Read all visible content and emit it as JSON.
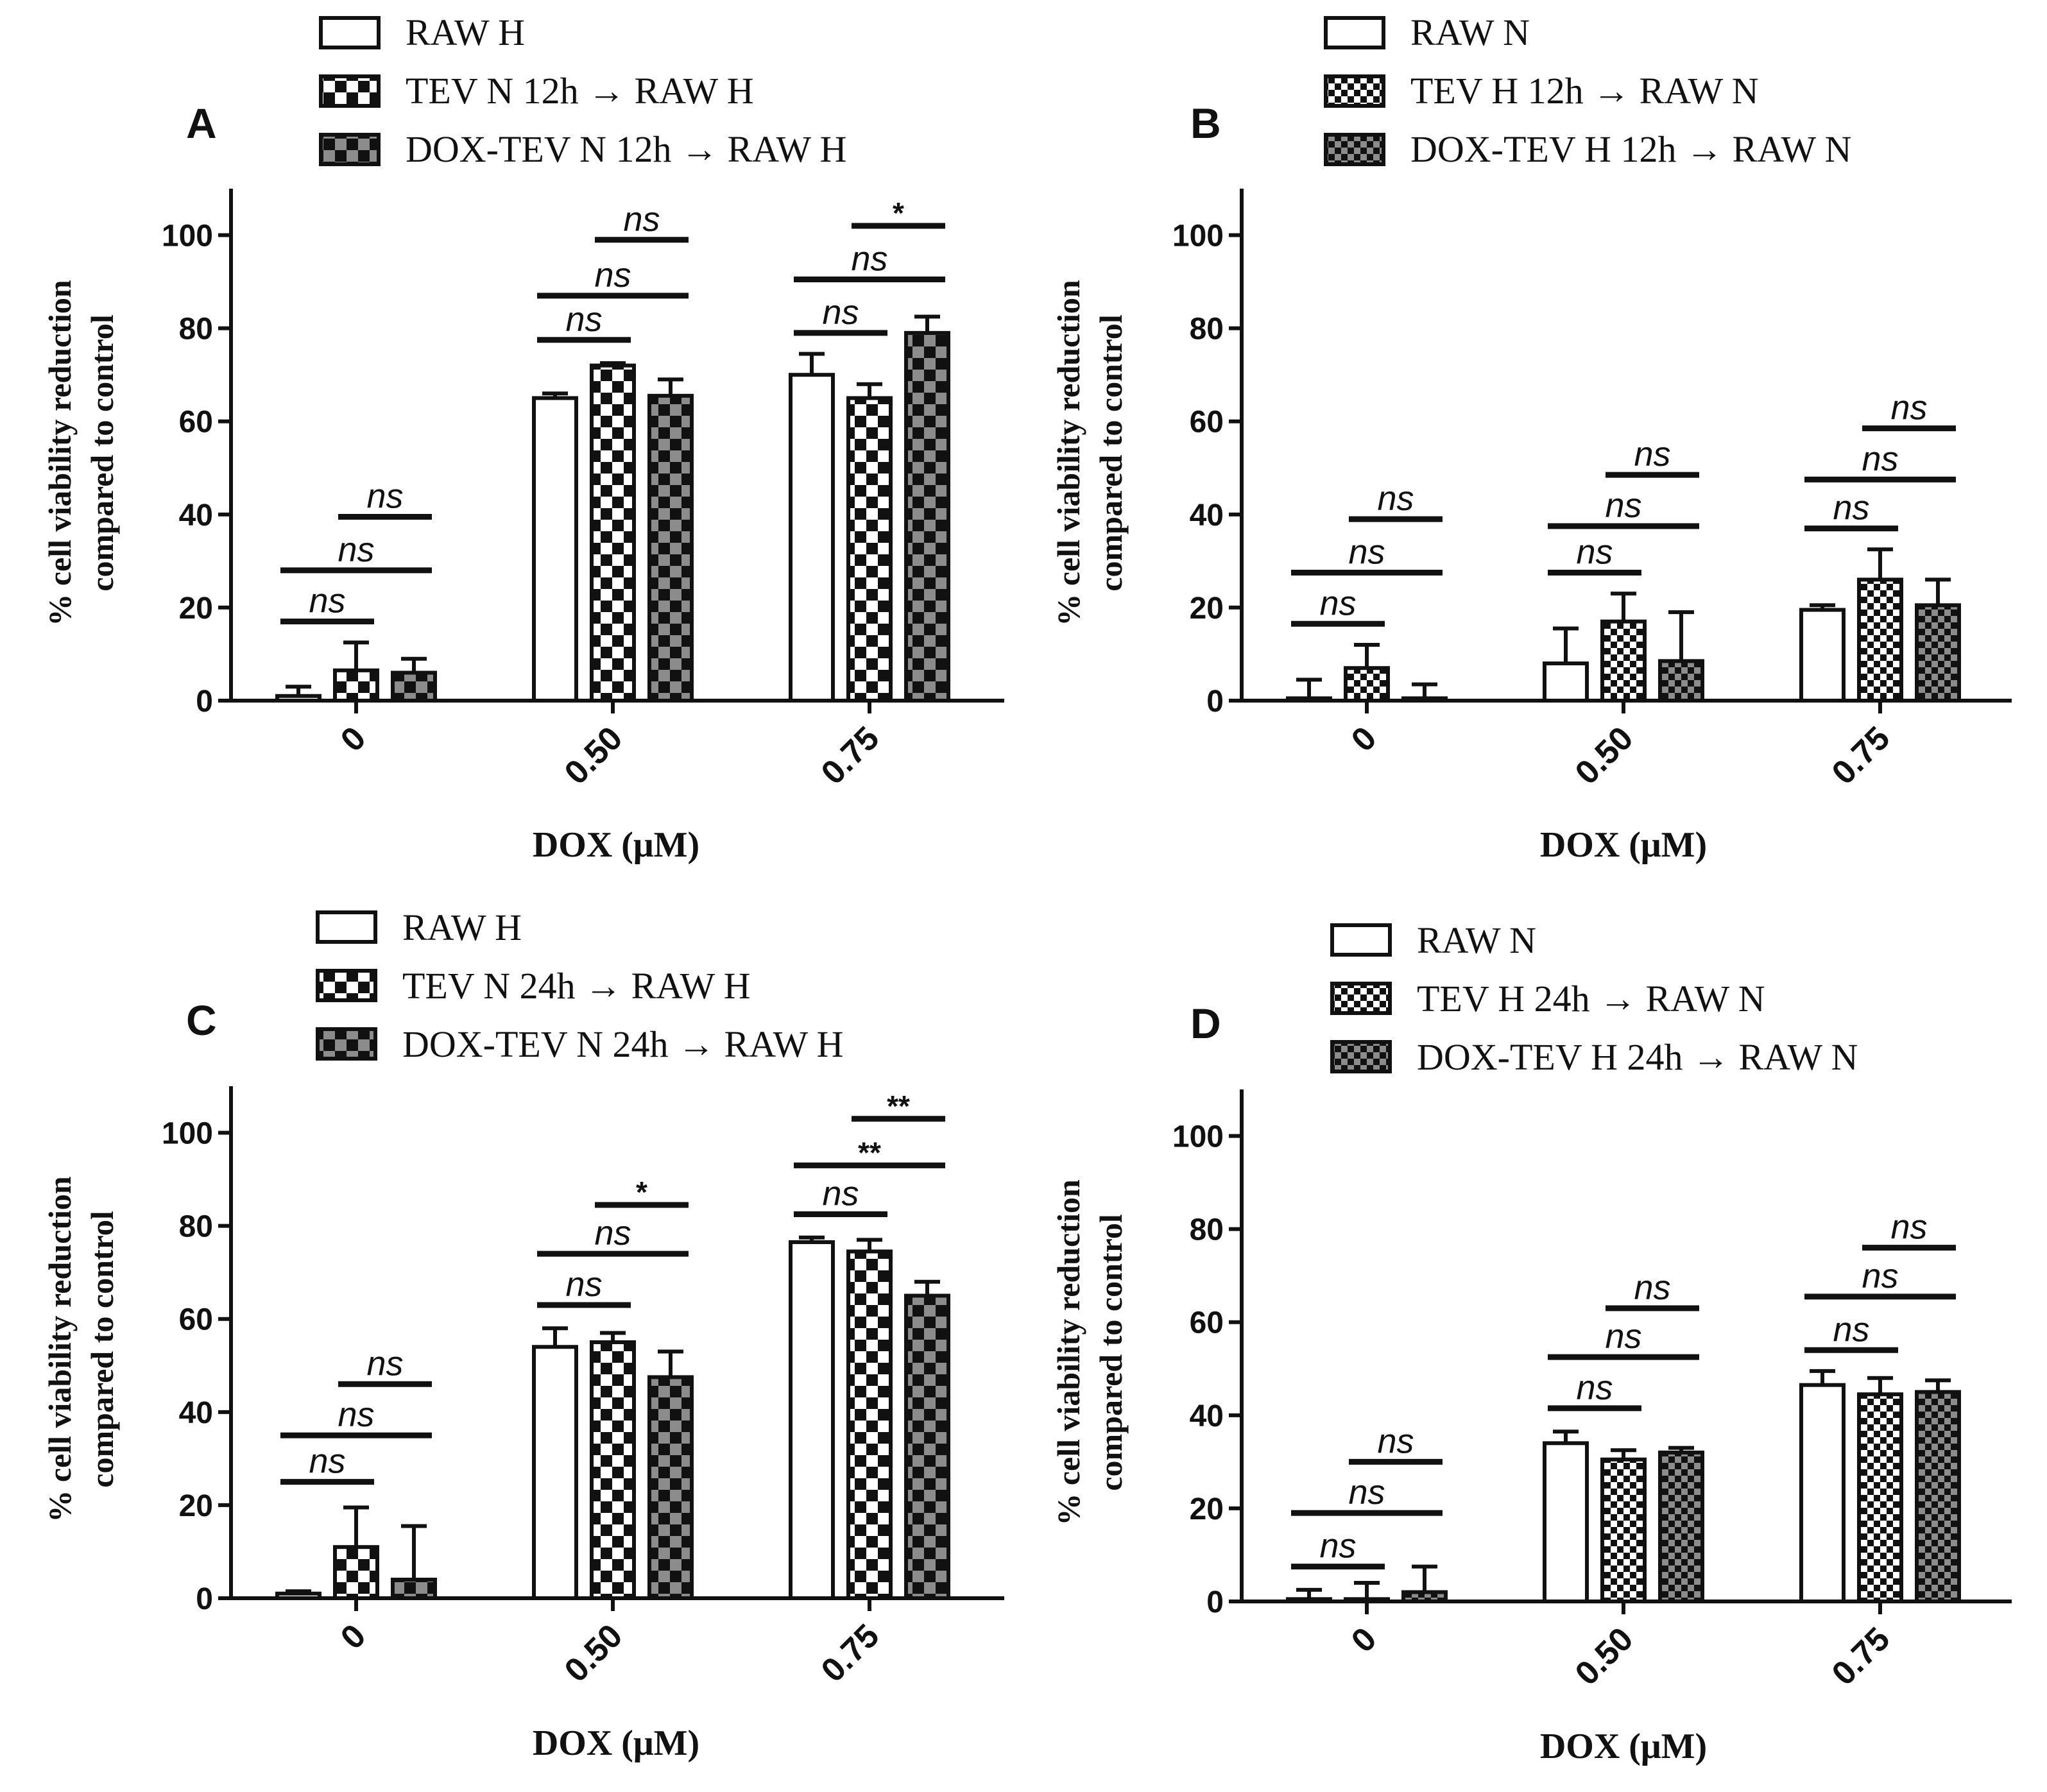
{
  "figure": {
    "ylabel_line1": "% cell viability reduction",
    "ylabel_line2": "compared to control"
  },
  "chart_data": [
    {
      "panel": "A",
      "type": "bar",
      "categories": [
        "0",
        "0.50",
        "0.75"
      ],
      "xlabel": "DOX (μM)",
      "ylim": [
        0,
        110
      ],
      "yticks": [
        0,
        20,
        40,
        60,
        80,
        100
      ],
      "series": [
        {
          "name": "RAW H",
          "pattern": "white",
          "values": [
            1,
            65,
            70
          ],
          "errors": [
            2,
            1,
            4.5
          ]
        },
        {
          "name": "TEV N 12h → RAW H",
          "pattern": "check",
          "values": [
            6.5,
            72,
            65
          ],
          "errors": [
            6,
            0.5,
            3
          ]
        },
        {
          "name": "DOX-TEV N 12h → RAW H",
          "pattern": "greycheck",
          "values": [
            6,
            65.5,
            79
          ],
          "errors": [
            3,
            3.5,
            3.5
          ]
        }
      ],
      "annotations": [
        {
          "label": "ns",
          "group": 0,
          "from": 0,
          "to": 1,
          "level": 17
        },
        {
          "label": "ns",
          "group": 0,
          "from": 0,
          "to": 2,
          "level": 28
        },
        {
          "label": "ns",
          "group": 0,
          "from": 1,
          "to": 2,
          "level": 39.5
        },
        {
          "label": "ns",
          "group": 1,
          "from": 0,
          "to": 1,
          "level": 77.5
        },
        {
          "label": "ns",
          "group": 1,
          "from": 0,
          "to": 2,
          "level": 87
        },
        {
          "label": "ns",
          "group": 1,
          "from": 1,
          "to": 2,
          "level": 99
        },
        {
          "label": "ns",
          "group": 2,
          "from": 0,
          "to": 1,
          "level": 79
        },
        {
          "label": "ns",
          "group": 2,
          "from": 0,
          "to": 2,
          "level": 90.5
        },
        {
          "label": "*",
          "group": 2,
          "from": 1,
          "to": 2,
          "level": 102
        }
      ]
    },
    {
      "panel": "B",
      "type": "bar",
      "categories": [
        "0",
        "0.50",
        "0.75"
      ],
      "xlabel": "DOX (μM)",
      "ylim": [
        0,
        110
      ],
      "yticks": [
        0,
        20,
        40,
        60,
        80,
        100
      ],
      "series": [
        {
          "name": "RAW N",
          "pattern": "white",
          "values": [
            0.5,
            8,
            19.5
          ],
          "errors": [
            4,
            7.5,
            1
          ]
        },
        {
          "name": "TEV H 12h → RAW N",
          "pattern": "dots",
          "values": [
            7,
            17,
            26
          ],
          "errors": [
            5,
            6,
            6.5
          ]
        },
        {
          "name": "DOX-TEV H 12h → RAW N",
          "pattern": "greydots",
          "values": [
            0.5,
            8.5,
            20.5
          ],
          "errors": [
            3,
            10.5,
            5.5
          ]
        }
      ],
      "annotations": [
        {
          "label": "ns",
          "group": 0,
          "from": 0,
          "to": 1,
          "level": 16.5
        },
        {
          "label": "ns",
          "group": 0,
          "from": 0,
          "to": 2,
          "level": 27.5
        },
        {
          "label": "ns",
          "group": 0,
          "from": 1,
          "to": 2,
          "level": 39
        },
        {
          "label": "ns",
          "group": 1,
          "from": 0,
          "to": 1,
          "level": 27.5
        },
        {
          "label": "ns",
          "group": 1,
          "from": 0,
          "to": 2,
          "level": 37.5
        },
        {
          "label": "ns",
          "group": 1,
          "from": 1,
          "to": 2,
          "level": 48.5
        },
        {
          "label": "ns",
          "group": 2,
          "from": 0,
          "to": 1,
          "level": 37
        },
        {
          "label": "ns",
          "group": 2,
          "from": 0,
          "to": 2,
          "level": 47.5
        },
        {
          "label": "ns",
          "group": 2,
          "from": 1,
          "to": 2,
          "level": 58.5
        }
      ]
    },
    {
      "panel": "C",
      "type": "bar",
      "categories": [
        "0",
        "0.50",
        "0.75"
      ],
      "xlabel": "DOX (μM)",
      "ylim": [
        0,
        110
      ],
      "yticks": [
        0,
        20,
        40,
        60,
        80,
        100
      ],
      "series": [
        {
          "name": "RAW H",
          "pattern": "white",
          "values": [
            1,
            54,
            76.5
          ],
          "errors": [
            0.5,
            4,
            1
          ]
        },
        {
          "name": "TEV N 24h → RAW H",
          "pattern": "check",
          "values": [
            11,
            55,
            74.5
          ],
          "errors": [
            8.5,
            2,
            2.5
          ]
        },
        {
          "name": "DOX-TEV N 24h → RAW H",
          "pattern": "greycheck",
          "values": [
            4,
            47.5,
            65
          ],
          "errors": [
            11.5,
            5.5,
            3
          ]
        }
      ],
      "annotations": [
        {
          "label": "ns",
          "group": 0,
          "from": 0,
          "to": 1,
          "level": 25
        },
        {
          "label": "ns",
          "group": 0,
          "from": 0,
          "to": 2,
          "level": 35
        },
        {
          "label": "ns",
          "group": 0,
          "from": 1,
          "to": 2,
          "level": 46
        },
        {
          "label": "ns",
          "group": 1,
          "from": 0,
          "to": 1,
          "level": 63
        },
        {
          "label": "ns",
          "group": 1,
          "from": 0,
          "to": 2,
          "level": 74
        },
        {
          "label": "*",
          "group": 1,
          "from": 1,
          "to": 2,
          "level": 84.5
        },
        {
          "label": "ns",
          "group": 2,
          "from": 0,
          "to": 1,
          "level": 82.5
        },
        {
          "label": "**",
          "group": 2,
          "from": 0,
          "to": 2,
          "level": 93
        },
        {
          "label": "**",
          "group": 2,
          "from": 1,
          "to": 2,
          "level": 103
        }
      ]
    },
    {
      "panel": "D",
      "type": "bar",
      "categories": [
        "0",
        "0.50",
        "0.75"
      ],
      "xlabel": "DOX (μM)",
      "ylim": [
        0,
        110
      ],
      "yticks": [
        0,
        20,
        40,
        60,
        80,
        100
      ],
      "series": [
        {
          "name": "RAW N",
          "pattern": "white",
          "values": [
            0.5,
            34,
            46.5
          ],
          "errors": [
            2,
            2.5,
            3
          ]
        },
        {
          "name": "TEV H 24h → RAW N",
          "pattern": "dots",
          "values": [
            0.5,
            30.5,
            44.5
          ],
          "errors": [
            3.5,
            2,
            3.5
          ]
        },
        {
          "name": "DOX-TEV H 24h → RAW N",
          "pattern": "greydots",
          "values": [
            2,
            32,
            45
          ],
          "errors": [
            5.5,
            1,
            2.5
          ]
        }
      ],
      "annotations": [
        {
          "label": "ns",
          "group": 0,
          "from": 0,
          "to": 1,
          "level": 7.5
        },
        {
          "label": "ns",
          "group": 0,
          "from": 0,
          "to": 2,
          "level": 19
        },
        {
          "label": "ns",
          "group": 0,
          "from": 1,
          "to": 2,
          "level": 30
        },
        {
          "label": "ns",
          "group": 1,
          "from": 0,
          "to": 1,
          "level": 41.5
        },
        {
          "label": "ns",
          "group": 1,
          "from": 0,
          "to": 2,
          "level": 52.5
        },
        {
          "label": "ns",
          "group": 1,
          "from": 1,
          "to": 2,
          "level": 63
        },
        {
          "label": "ns",
          "group": 2,
          "from": 0,
          "to": 1,
          "level": 54
        },
        {
          "label": "ns",
          "group": 2,
          "from": 0,
          "to": 2,
          "level": 65.5
        },
        {
          "label": "ns",
          "group": 2,
          "from": 1,
          "to": 2,
          "level": 76
        }
      ]
    }
  ]
}
